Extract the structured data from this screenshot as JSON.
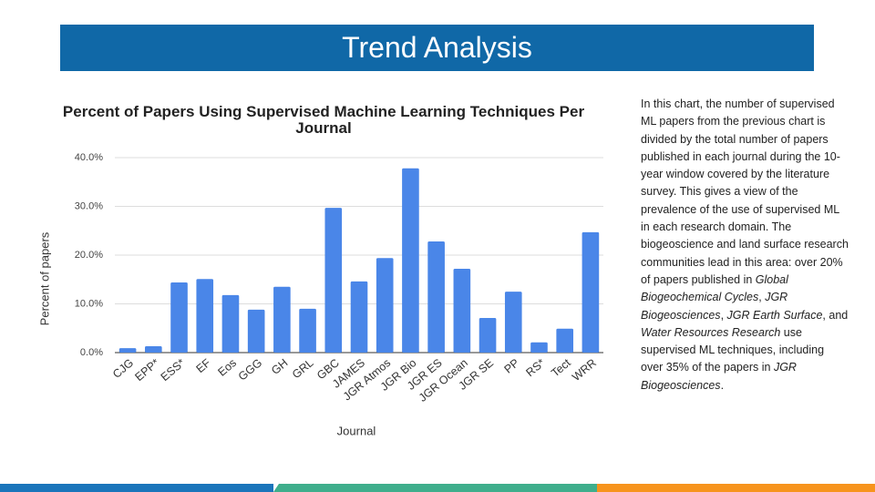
{
  "slide_title": "Trend Analysis",
  "description": [
    {
      "text": "In this chart, the number of supervised ML papers from the previous chart is divided by the total number of papers published in each journal during the 10-year window covered by the literature survey. This gives a view of the prevalence of the use of supervised ML in each research domain. The biogeoscience and land surface research communities lead in this area: over 20% of papers published in ",
      "italic": false
    },
    {
      "text": "Global Biogeochemical Cycles",
      "italic": true
    },
    {
      "text": ", ",
      "italic": false
    },
    {
      "text": "JGR Biogeosciences",
      "italic": true
    },
    {
      "text": ", ",
      "italic": false
    },
    {
      "text": "JGR Earth Surface",
      "italic": true
    },
    {
      "text": ", and ",
      "italic": false
    },
    {
      "text": "Water Resources Research",
      "italic": true
    },
    {
      "text": " use supervised ML techniques, including over 35% of the papers in ",
      "italic": false
    },
    {
      "text": "JGR Biogeosciences",
      "italic": true
    },
    {
      "text": ".",
      "italic": false
    }
  ],
  "chart_data": {
    "type": "bar",
    "title": "Percent of Papers Using Supervised Machine Learning Techniques Per Journal",
    "x_label": "Journal",
    "y_label": "Percent of papers",
    "categories": [
      "CJG",
      "EPP*",
      "ESS*",
      "EF",
      "Eos",
      "GGG",
      "GH",
      "GRL",
      "GBC",
      "JAMES",
      "JGR Atmos",
      "JGR Bio",
      "JGR ES",
      "JGR Ocean",
      "JGR SE",
      "PP",
      "RS*",
      "Tect",
      "WRR"
    ],
    "values": [
      0.9,
      1.3,
      14.4,
      15.1,
      11.8,
      8.8,
      13.5,
      9.0,
      29.7,
      14.6,
      19.4,
      37.8,
      22.8,
      17.2,
      7.1,
      12.5,
      2.1,
      4.9,
      24.7
    ],
    "color": "#4a86e8",
    "ylim": [
      0,
      40
    ],
    "yticks": [
      {
        "value": 0,
        "label": "0.0%"
      },
      {
        "value": 10,
        "label": "10.0%"
      },
      {
        "value": 20,
        "label": "20.0%"
      },
      {
        "value": 30,
        "label": "30.0%"
      },
      {
        "value": 40,
        "label": "40.0%"
      }
    ],
    "grid": true
  }
}
